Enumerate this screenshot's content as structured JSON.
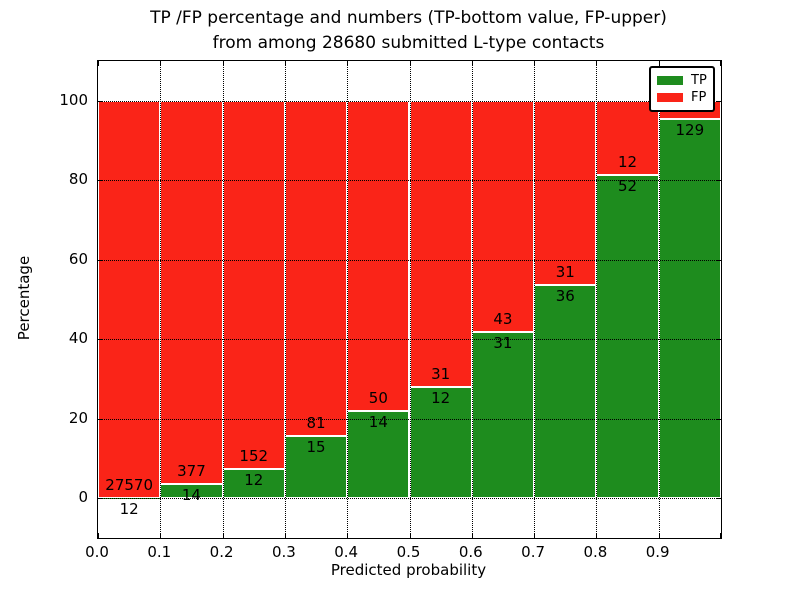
{
  "title": {
    "line1": "TP /FP percentage and numbers (TP-bottom value, FP-upper)",
    "line2": "from among 28680 submitted L-type contacts"
  },
  "legend": {
    "position": "upper right",
    "items": [
      {
        "label": "TP",
        "color": "#1e8c1e"
      },
      {
        "label": "FP",
        "color": "#fa2418"
      }
    ]
  },
  "chart_data": {
    "type": "bar",
    "stacked": true,
    "title": "TP /FP percentage and numbers (TP-bottom value, FP-upper) from among 28680 submitted L-type contacts",
    "total_submitted": 28680,
    "xlabel": "Predicted probability",
    "ylabel": "Percentage",
    "xlim": [
      0.0,
      1.0
    ],
    "ylim": [
      -10,
      110
    ],
    "grid": true,
    "yticks": [
      0,
      20,
      40,
      60,
      80,
      100
    ],
    "xtick_labels": [
      "0.0",
      "0.1",
      "0.2",
      "0.3",
      "0.4",
      "0.5",
      "0.6",
      "0.7",
      "0.8",
      "0.9"
    ],
    "bin_width": 0.1,
    "series": [
      {
        "name": "TP",
        "color": "#1e8c1e"
      },
      {
        "name": "FP",
        "color": "#fa2418"
      }
    ],
    "bins": [
      {
        "x_start": 0.0,
        "tp_count": 12,
        "fp_count": 27570,
        "tp_pct": 0.04
      },
      {
        "x_start": 0.1,
        "tp_count": 14,
        "fp_count": 377,
        "tp_pct": 3.6
      },
      {
        "x_start": 0.2,
        "tp_count": 12,
        "fp_count": 152,
        "tp_pct": 7.3
      },
      {
        "x_start": 0.3,
        "tp_count": 15,
        "fp_count": 81,
        "tp_pct": 15.6
      },
      {
        "x_start": 0.4,
        "tp_count": 14,
        "fp_count": 50,
        "tp_pct": 21.9
      },
      {
        "x_start": 0.5,
        "tp_count": 12,
        "fp_count": 31,
        "tp_pct": 27.9
      },
      {
        "x_start": 0.6,
        "tp_count": 31,
        "fp_count": 43,
        "tp_pct": 41.9
      },
      {
        "x_start": 0.7,
        "tp_count": 36,
        "fp_count": 31,
        "tp_pct": 53.7
      },
      {
        "x_start": 0.8,
        "tp_count": 52,
        "fp_count": 12,
        "tp_pct": 81.3
      },
      {
        "x_start": 0.9,
        "tp_count": 129,
        "fp_count": null,
        "tp_pct": 95.4
      }
    ],
    "notes": "FP count label of the 0.9 bin is hidden behind the legend box"
  }
}
